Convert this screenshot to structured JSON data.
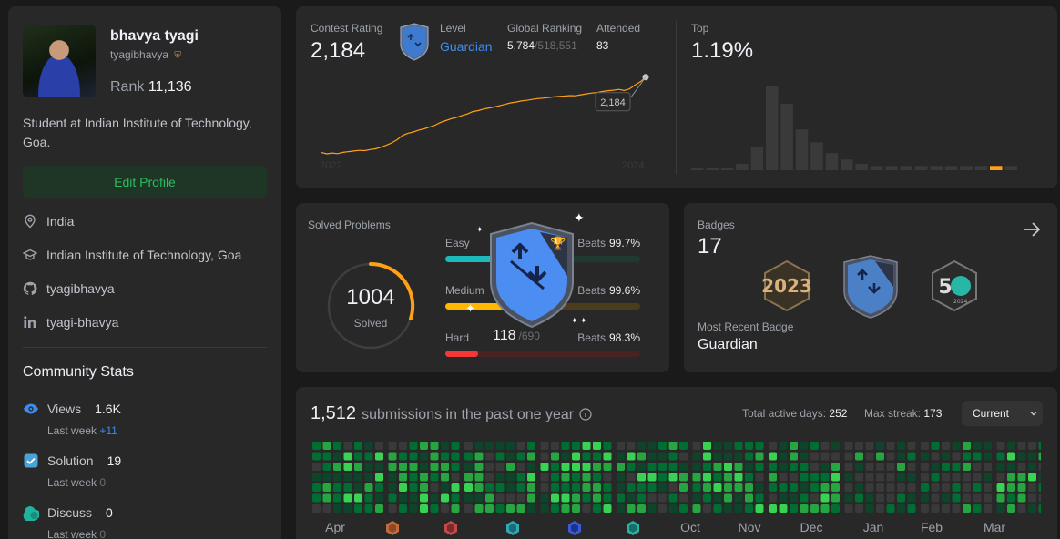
{
  "profile": {
    "name": "bhavya tyagi",
    "handle": "tyagibhavya",
    "rank_label": "Rank",
    "rank_value": "11,136",
    "bio": "Student at Indian Institute of Technology, Goa.",
    "edit_label": "Edit Profile",
    "location": "India",
    "school": "Indian Institute of Technology, Goa",
    "github": "tyagibhavya",
    "linkedin": "tyagi-bhavya"
  },
  "community": {
    "title": "Community Stats",
    "views": {
      "label": "Views",
      "value": "1.6K",
      "week_label": "Last week",
      "week_value": "+11"
    },
    "solution": {
      "label": "Solution",
      "value": "19",
      "week_label": "Last week",
      "week_value": "0"
    },
    "discuss": {
      "label": "Discuss",
      "value": "0",
      "week_label": "Last week",
      "week_value": "0"
    }
  },
  "contest": {
    "rating_label": "Contest Rating",
    "rating": "2,184",
    "level_label": "Level",
    "level": "Guardian",
    "global_label": "Global Ranking",
    "global_rank": "5,784",
    "global_total": "/518,551",
    "attended_label": "Attended",
    "attended": "83",
    "top_label": "Top",
    "top_value": "1.19%",
    "tooltip": "2,184",
    "x_start": "2022",
    "x_end": "2024",
    "rating_series": [
      1480,
      1468,
      1476,
      1470,
      1482,
      1488,
      1494,
      1500,
      1498,
      1508,
      1515,
      1530,
      1548,
      1570,
      1600,
      1640,
      1660,
      1672,
      1690,
      1702,
      1718,
      1735,
      1760,
      1778,
      1796,
      1808,
      1826,
      1840,
      1862,
      1872,
      1886,
      1896,
      1906,
      1918,
      1930,
      1944,
      1952,
      1962,
      1968,
      1976,
      1984,
      1988,
      1994,
      2000,
      2004,
      2008,
      2012,
      2010,
      2020,
      2028,
      2036,
      2040,
      2050,
      2058,
      2062,
      2070,
      2060,
      2074,
      2110,
      2140,
      2184
    ],
    "histogram": [
      2,
      2,
      2,
      6,
      22,
      78,
      62,
      38,
      26,
      16,
      10,
      6,
      4,
      4,
      4,
      4,
      4,
      4,
      4,
      4,
      4,
      4
    ],
    "histogram_highlight": 20,
    "accent": "#ffa116"
  },
  "solved": {
    "title": "Solved Problems",
    "total": "1004",
    "total_label": "Solved",
    "easy": {
      "name": "Easy",
      "beats_label": "Beats",
      "beats": "99.7%",
      "fill": 0.42
    },
    "medium": {
      "name": "Medium",
      "beats_label": "Beats",
      "beats": "99.6%",
      "fill": 0.52
    },
    "hard": {
      "name": "Hard",
      "beats_label": "Beats",
      "beats": "98.3%",
      "solved": "118",
      "total": "/690",
      "fill": 0.17
    }
  },
  "badges": {
    "title": "Badges",
    "count": "17",
    "recent_label": "Most Recent Badge",
    "recent": "Guardian"
  },
  "submissions": {
    "count": "1,512",
    "label": "submissions in the past one year",
    "active_label": "Total active days:",
    "active": "252",
    "streak_label": "Max streak:",
    "streak": "173",
    "current": "Current",
    "months": [
      "Apr",
      "Oct",
      "Nov",
      "Dec",
      "Jan",
      "Feb",
      "Mar"
    ]
  }
}
